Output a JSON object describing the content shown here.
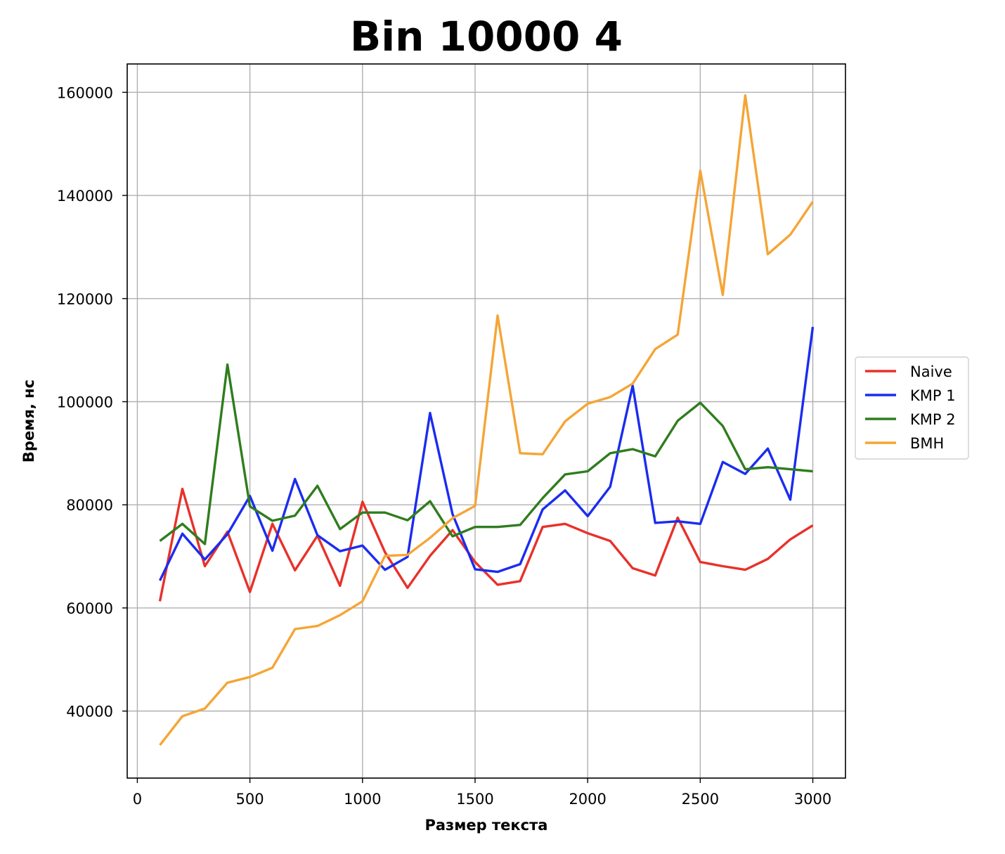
{
  "chart_data": {
    "type": "line",
    "title": "Bin 10000 4",
    "xlabel": "Размер текста",
    "ylabel": "Время, нс",
    "xlim": [
      -45,
      3145
    ],
    "ylim": [
      27000,
      165500
    ],
    "grid": true,
    "legend_position": "center-right",
    "x_ticks": [
      0,
      500,
      1000,
      1500,
      2000,
      2500,
      3000
    ],
    "x_tick_labels": [
      "0",
      "500",
      "1000",
      "1500",
      "2000",
      "2500",
      "3000"
    ],
    "y_ticks": [
      40000,
      60000,
      80000,
      100000,
      120000,
      140000,
      160000
    ],
    "y_tick_labels": [
      "40000",
      "60000",
      "80000",
      "100000",
      "120000",
      "140000",
      "160000"
    ],
    "x": [
      100,
      200,
      300,
      400,
      500,
      600,
      700,
      800,
      900,
      1000,
      1100,
      1200,
      1300,
      1400,
      1500,
      1600,
      1700,
      1800,
      1900,
      2000,
      2100,
      2200,
      2300,
      2400,
      2500,
      2600,
      2700,
      2800,
      2900,
      3000
    ],
    "series": [
      {
        "name": "Naive",
        "color": "#e8312a",
        "values": [
          61300,
          83100,
          68100,
          74800,
          63100,
          76300,
          67300,
          74000,
          64300,
          80600,
          70800,
          63900,
          70100,
          75100,
          68900,
          64500,
          65200,
          75700,
          76300,
          74500,
          73000,
          67700,
          66300,
          77500,
          68900,
          68100,
          67400,
          69500,
          73300,
          76000
        ]
      },
      {
        "name": "KMP 1",
        "color": "#1a2cf0",
        "values": [
          65300,
          74400,
          69400,
          74300,
          81700,
          71100,
          85000,
          74100,
          71000,
          72100,
          67400,
          69900,
          97800,
          78200,
          67500,
          67000,
          68500,
          79100,
          82800,
          77800,
          83500,
          103100,
          76500,
          76800,
          76300,
          88300,
          86000,
          90900,
          81000,
          114500
        ]
      },
      {
        "name": "KMP 2",
        "color": "#2f7d1e",
        "values": [
          73000,
          76300,
          72400,
          107200,
          79700,
          76900,
          77900,
          83700,
          75300,
          78500,
          78500,
          77000,
          80700,
          73900,
          75700,
          75700,
          76100,
          81300,
          85900,
          86500,
          90000,
          90800,
          89400,
          96300,
          99800,
          95300,
          86900,
          87300,
          86900,
          86500
        ]
      },
      {
        "name": "BMH",
        "color": "#f5a536",
        "values": [
          33400,
          39000,
          40500,
          45500,
          46600,
          48400,
          55900,
          56500,
          58600,
          61300,
          70100,
          70300,
          73600,
          77400,
          79800,
          116700,
          90000,
          89800,
          96200,
          99600,
          100900,
          103500,
          110200,
          113000,
          144800,
          120700,
          159400,
          128600,
          132400,
          138800
        ]
      }
    ]
  }
}
